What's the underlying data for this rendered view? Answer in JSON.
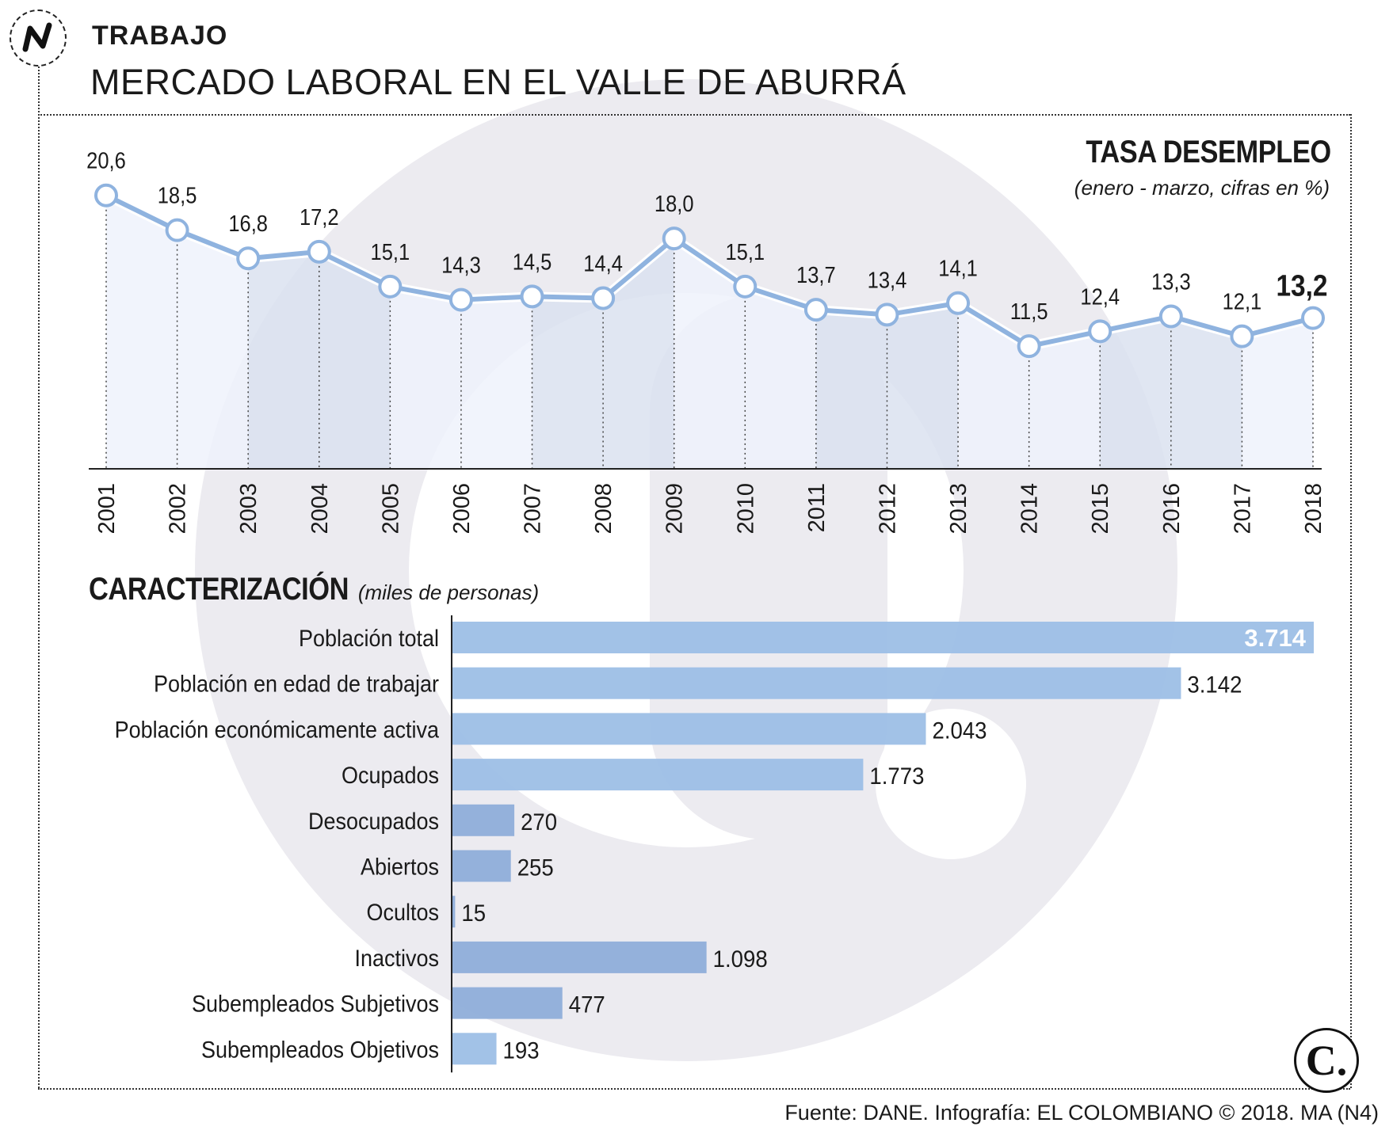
{
  "header": {
    "section": "TRABAJO",
    "title": "MERCADO LABORAL EN EL VALLE DE ABURRÁ"
  },
  "colors": {
    "line": "#8fb3df",
    "bar": "#9dbfe6",
    "bar_dark": "#8faed9",
    "area_light": "#eef2fb",
    "area_dark": "#dbe2f0",
    "watermark": "#ecebf0"
  },
  "chart_data": [
    {
      "type": "line",
      "title": "TASA DESEMPLEO",
      "subtitle": "(enero - marzo, cifras en %)",
      "xlabel": "",
      "ylabel": "",
      "categories": [
        "2001",
        "2002",
        "2003",
        "2004",
        "2005",
        "2006",
        "2007",
        "2008",
        "2009",
        "2010",
        "2011",
        "2012",
        "2013",
        "2014",
        "2015",
        "2016",
        "2017",
        "2018"
      ],
      "values": [
        20.6,
        18.5,
        16.8,
        17.2,
        15.1,
        14.3,
        14.5,
        14.4,
        18.0,
        15.1,
        13.7,
        13.4,
        14.1,
        11.5,
        12.4,
        13.3,
        12.1,
        13.2
      ],
      "labels": [
        "20,6",
        "18,5",
        "16,8",
        "17,2",
        "15,1",
        "14,3",
        "14,5",
        "14,4",
        "18,0",
        "15,1",
        "13,7",
        "13,4",
        "14,1",
        "11,5",
        "12,4",
        "13,3",
        "12,1",
        "13,2"
      ],
      "ylim": [
        4.1,
        21.4
      ],
      "highlight_last": true
    },
    {
      "type": "bar",
      "orientation": "horizontal",
      "title": "CARACTERIZACIÓN",
      "subtitle": "(miles de personas)",
      "categories": [
        "Población total",
        "Población en edad de trabajar",
        "Población económicamente activa",
        "Ocupados",
        "Desocupados",
        "Abiertos",
        "Ocultos",
        "Inactivos",
        "Subempleados Subjetivos",
        "Subempleados Objetivos"
      ],
      "values": [
        3714,
        3142,
        2043,
        1773,
        270,
        255,
        15,
        1098,
        477,
        193
      ],
      "labels": [
        "3.714",
        "3.142",
        "2.043",
        "1.773",
        "270",
        "255",
        "15",
        "1.098",
        "477",
        "193"
      ],
      "xlim": [
        0,
        3714
      ]
    }
  ],
  "footer": {
    "source": "Fuente: DANE. Infografía: EL COLOMBIANO © 2018. MA (N4)"
  }
}
